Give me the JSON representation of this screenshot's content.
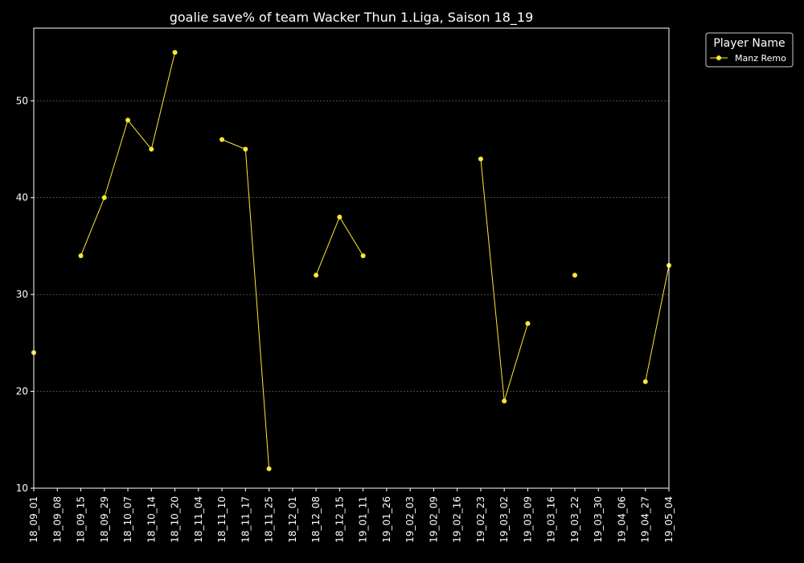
{
  "chart_data": {
    "type": "line",
    "title": "goalie save% of team Wacker Thun 1.Liga, Saison 18_19",
    "xlabel": "",
    "ylabel": "",
    "categories": [
      "18_09_01",
      "18_09_08",
      "18_09_15",
      "18_09_29",
      "18_10_07",
      "18_10_14",
      "18_10_20",
      "18_11_04",
      "18_11_10",
      "18_11_17",
      "18_11_25",
      "18_12_01",
      "18_12_08",
      "18_12_15",
      "19_01_11",
      "19_01_26",
      "19_02_03",
      "19_02_09",
      "19_02_16",
      "19_02_23",
      "19_03_02",
      "19_03_09",
      "19_03_16",
      "19_03_22",
      "19_03_30",
      "19_04_06",
      "19_04_27",
      "19_05_04"
    ],
    "yticks": [
      10,
      20,
      30,
      40,
      50
    ],
    "ylim": [
      10,
      57.5
    ],
    "grid": true,
    "legend": {
      "title": "Player Name",
      "placement": "top-right-outside"
    },
    "series": [
      {
        "name": "Manz Remo",
        "color": "#ffe733",
        "values": [
          24,
          null,
          34,
          40,
          48,
          45,
          55,
          null,
          46,
          45,
          12,
          null,
          32,
          38,
          34,
          null,
          null,
          null,
          null,
          44,
          19,
          27,
          null,
          32,
          null,
          null,
          21,
          33
        ]
      }
    ]
  }
}
